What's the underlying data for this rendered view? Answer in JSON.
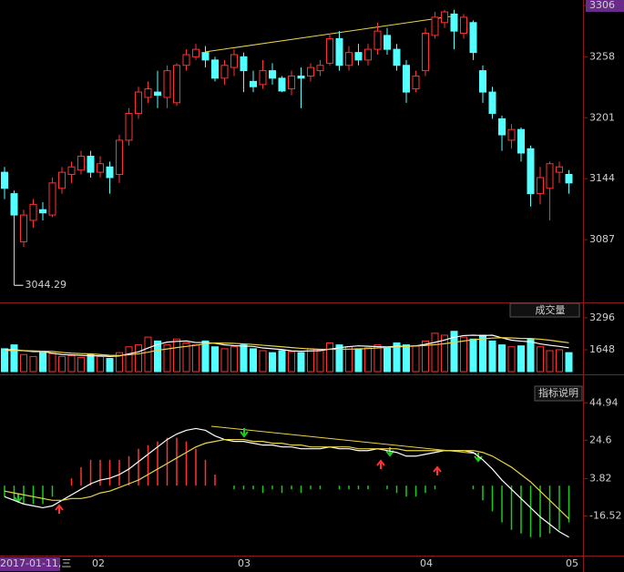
{
  "chart_data": [
    {
      "type": "candlestick",
      "up_color": "#ff3232",
      "down_color": "#54ffff",
      "ylim": [
        3030,
        3306
      ],
      "yticks": [
        3306,
        3258,
        3201,
        3144,
        3087
      ],
      "open": [
        3150,
        3130,
        3085,
        3105,
        3115,
        3110,
        3135,
        3148,
        3152,
        3165,
        3150,
        3155,
        3148,
        3180,
        3205,
        3220,
        3225,
        3220,
        3215,
        3250,
        3258,
        3262,
        3255,
        3238,
        3248,
        3258,
        3235,
        3232,
        3245,
        3238,
        3228,
        3240,
        3240,
        3245,
        3252,
        3275,
        3250,
        3262,
        3255,
        3265,
        3278,
        3265,
        3250,
        3228,
        3245,
        3278,
        3290,
        3298,
        3280,
        3290,
        3245,
        3225,
        3200,
        3180,
        3190,
        3172,
        3130,
        3135,
        3150,
        3148
      ],
      "high": [
        3155,
        3133,
        3115,
        3125,
        3122,
        3145,
        3155,
        3160,
        3170,
        3170,
        3165,
        3160,
        3185,
        3210,
        3230,
        3235,
        3245,
        3250,
        3252,
        3265,
        3270,
        3268,
        3258,
        3255,
        3265,
        3262,
        3245,
        3255,
        3252,
        3240,
        3245,
        3248,
        3252,
        3255,
        3280,
        3282,
        3268,
        3270,
        3270,
        3290,
        3285,
        3270,
        3255,
        3245,
        3285,
        3300,
        3302,
        3302,
        3298,
        3292,
        3250,
        3230,
        3203,
        3195,
        3192,
        3175,
        3155,
        3160,
        3160,
        3152
      ],
      "low": [
        3125,
        3044.29,
        3080,
        3098,
        3105,
        3108,
        3130,
        3140,
        3148,
        3145,
        3145,
        3130,
        3140,
        3175,
        3200,
        3215,
        3210,
        3210,
        3212,
        3245,
        3255,
        3248,
        3235,
        3232,
        3240,
        3225,
        3225,
        3228,
        3232,
        3225,
        3222,
        3210,
        3235,
        3240,
        3250,
        3245,
        3245,
        3250,
        3250,
        3260,
        3260,
        3245,
        3215,
        3225,
        3240,
        3275,
        3285,
        3265,
        3275,
        3255,
        3215,
        3200,
        3170,
        3172,
        3160,
        3118,
        3120,
        3105,
        3140,
        3130
      ],
      "close": [
        3135,
        3110,
        3110,
        3120,
        3112,
        3140,
        3150,
        3155,
        3165,
        3150,
        3158,
        3145,
        3180,
        3205,
        3225,
        3228,
        3222,
        3245,
        3250,
        3260,
        3265,
        3255,
        3238,
        3250,
        3260,
        3245,
        3230,
        3245,
        3238,
        3226,
        3240,
        3238,
        3248,
        3250,
        3275,
        3250,
        3262,
        3255,
        3265,
        3282,
        3265,
        3250,
        3225,
        3240,
        3280,
        3295,
        3300,
        3282,
        3295,
        3262,
        3225,
        3205,
        3185,
        3190,
        3168,
        3130,
        3145,
        3158,
        3155,
        3140
      ]
    },
    {
      "type": "volume",
      "title": "成交量",
      "ylim": [
        520,
        3480
      ],
      "yticks": [
        3296,
        1648
      ],
      "values": [
        1700,
        1900,
        1400,
        1300,
        1500,
        1450,
        1300,
        1350,
        1250,
        1400,
        1300,
        1200,
        1500,
        1800,
        1900,
        2300,
        2100,
        1900,
        2200,
        2000,
        1900,
        2100,
        1800,
        1700,
        1800,
        1900,
        1700,
        1600,
        1500,
        1600,
        1550,
        1500,
        1700,
        1650,
        2000,
        1900,
        1800,
        1700,
        1750,
        1900,
        1800,
        2000,
        1900,
        1850,
        2100,
        2500,
        2400,
        2600,
        2300,
        2200,
        2400,
        2100,
        1900,
        1800,
        1850,
        2200,
        1800,
        1600,
        1650,
        1500
      ],
      "series": [
        {
          "color": "#ffffff",
          "values": [
            1650,
            1650,
            1600,
            1550,
            1560,
            1470,
            1400,
            1380,
            1360,
            1340,
            1330,
            1300,
            1330,
            1440,
            1540,
            1740,
            1920,
            2040,
            2080,
            2100,
            2020,
            2020,
            1980,
            1900,
            1860,
            1840,
            1820,
            1740,
            1700,
            1660,
            1590,
            1570,
            1590,
            1600,
            1680,
            1750,
            1810,
            1850,
            1830,
            1810,
            1790,
            1830,
            1830,
            1850,
            1930,
            2030,
            2150,
            2290,
            2380,
            2400,
            2380,
            2400,
            2260,
            2140,
            2090,
            2060,
            1950,
            1880,
            1820,
            1750
          ]
        },
        {
          "color": "#e8d34a",
          "values": [
            1600,
            1610,
            1600,
            1590,
            1570,
            1560,
            1510,
            1470,
            1450,
            1440,
            1400,
            1360,
            1350,
            1390,
            1440,
            1520,
            1620,
            1690,
            1760,
            1820,
            1880,
            1960,
            2000,
            1990,
            1980,
            1950,
            1920,
            1880,
            1840,
            1800,
            1760,
            1720,
            1690,
            1670,
            1670,
            1670,
            1680,
            1690,
            1710,
            1740,
            1770,
            1790,
            1820,
            1840,
            1870,
            1910,
            1960,
            2030,
            2100,
            2160,
            2210,
            2250,
            2270,
            2260,
            2230,
            2230,
            2190,
            2140,
            2070,
            2010
          ]
        }
      ]
    },
    {
      "type": "macd",
      "button": "指标说明",
      "pos_color": "#ff3232",
      "neg_color": "#1ec81e",
      "ylim": [
        -38,
        51
      ],
      "yticks": [
        44.94,
        24.6,
        3.82,
        -16.52
      ],
      "x_labels": [
        "2017-01-11,三",
        "02",
        "03",
        "04",
        "05"
      ],
      "values": [
        -6,
        -8,
        -10,
        -10,
        -10,
        -6,
        0,
        4,
        10,
        14,
        14,
        14,
        14,
        16,
        20,
        22,
        24,
        26,
        26,
        24,
        20,
        14,
        6,
        0,
        -2,
        -2,
        -2,
        -4,
        -2,
        -4,
        -2,
        -4,
        -2,
        -2,
        0,
        -2,
        -2,
        -2,
        -2,
        0,
        -2,
        -4,
        -6,
        -6,
        -4,
        -2,
        0,
        0,
        0,
        -2,
        -8,
        -14,
        -20,
        -24,
        -26,
        -28,
        -28,
        -26,
        -24,
        -20
      ],
      "series": [
        {
          "color": "#ffffff",
          "values": [
            -6,
            -8,
            -10,
            -11,
            -12,
            -11,
            -8,
            -5,
            -2,
            1,
            3,
            4,
            6,
            9,
            13,
            17,
            21,
            25,
            28,
            30,
            31,
            30,
            27,
            25,
            24,
            24,
            23,
            22,
            22,
            21,
            21,
            20,
            20,
            20,
            21,
            20,
            20,
            19,
            19,
            20,
            19,
            18,
            16,
            16,
            17,
            18,
            19,
            19,
            19,
            18,
            14,
            9,
            3,
            -2,
            -7,
            -12,
            -17,
            -21,
            -25,
            -28
          ]
        },
        {
          "color": "#e8d34a",
          "values": [
            -3,
            -4,
            -5,
            -6,
            -7,
            -8,
            -8,
            -7,
            -7,
            -6,
            -4,
            -3,
            -1,
            1,
            3,
            6,
            9,
            12,
            15,
            18,
            21,
            23,
            24,
            25,
            25,
            25,
            24,
            24,
            23,
            23,
            22,
            22,
            21,
            21,
            21,
            21,
            21,
            20,
            20,
            20,
            20,
            20,
            19,
            19,
            19,
            19,
            19,
            19,
            19,
            19,
            18,
            16,
            13,
            10,
            6,
            2,
            -3,
            -8,
            -13,
            -18
          ]
        }
      ]
    }
  ]
}
